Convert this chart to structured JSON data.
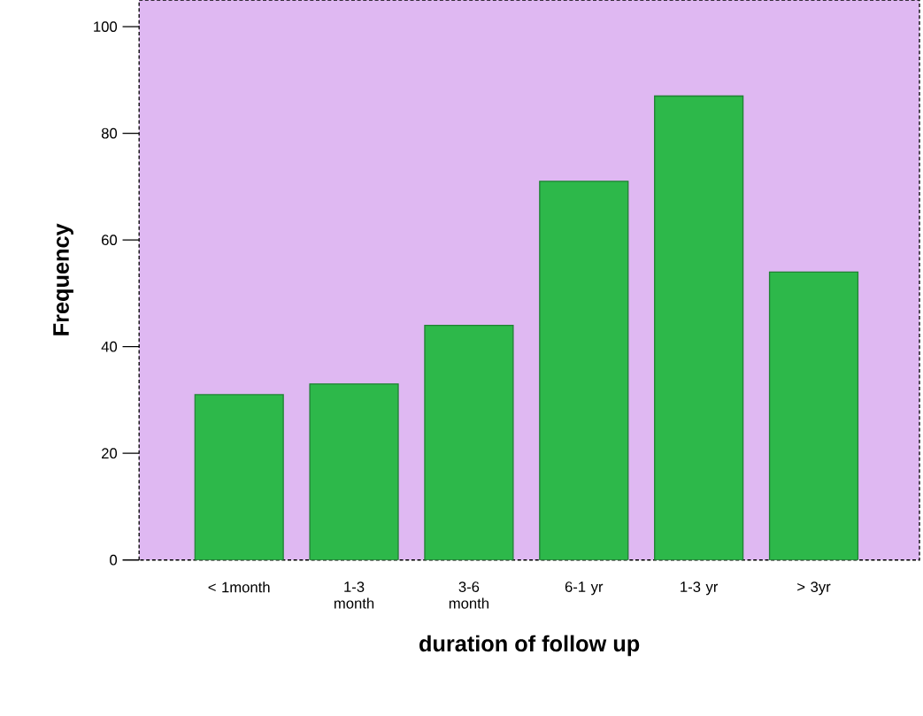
{
  "chart_data": {
    "type": "bar",
    "categories": [
      "< 1month",
      "1-3 month",
      "3-6 month",
      "6-1 yr",
      "1-3 yr",
      "> 3yr"
    ],
    "values": [
      31,
      33,
      44,
      71,
      87,
      54
    ],
    "color": "#2db84a",
    "xlabel": "duration of follow up",
    "ylabel": "Frequency",
    "ylim": [
      0,
      105
    ],
    "yticks": [
      0,
      20,
      40,
      60,
      80,
      100
    ],
    "grid": false
  }
}
